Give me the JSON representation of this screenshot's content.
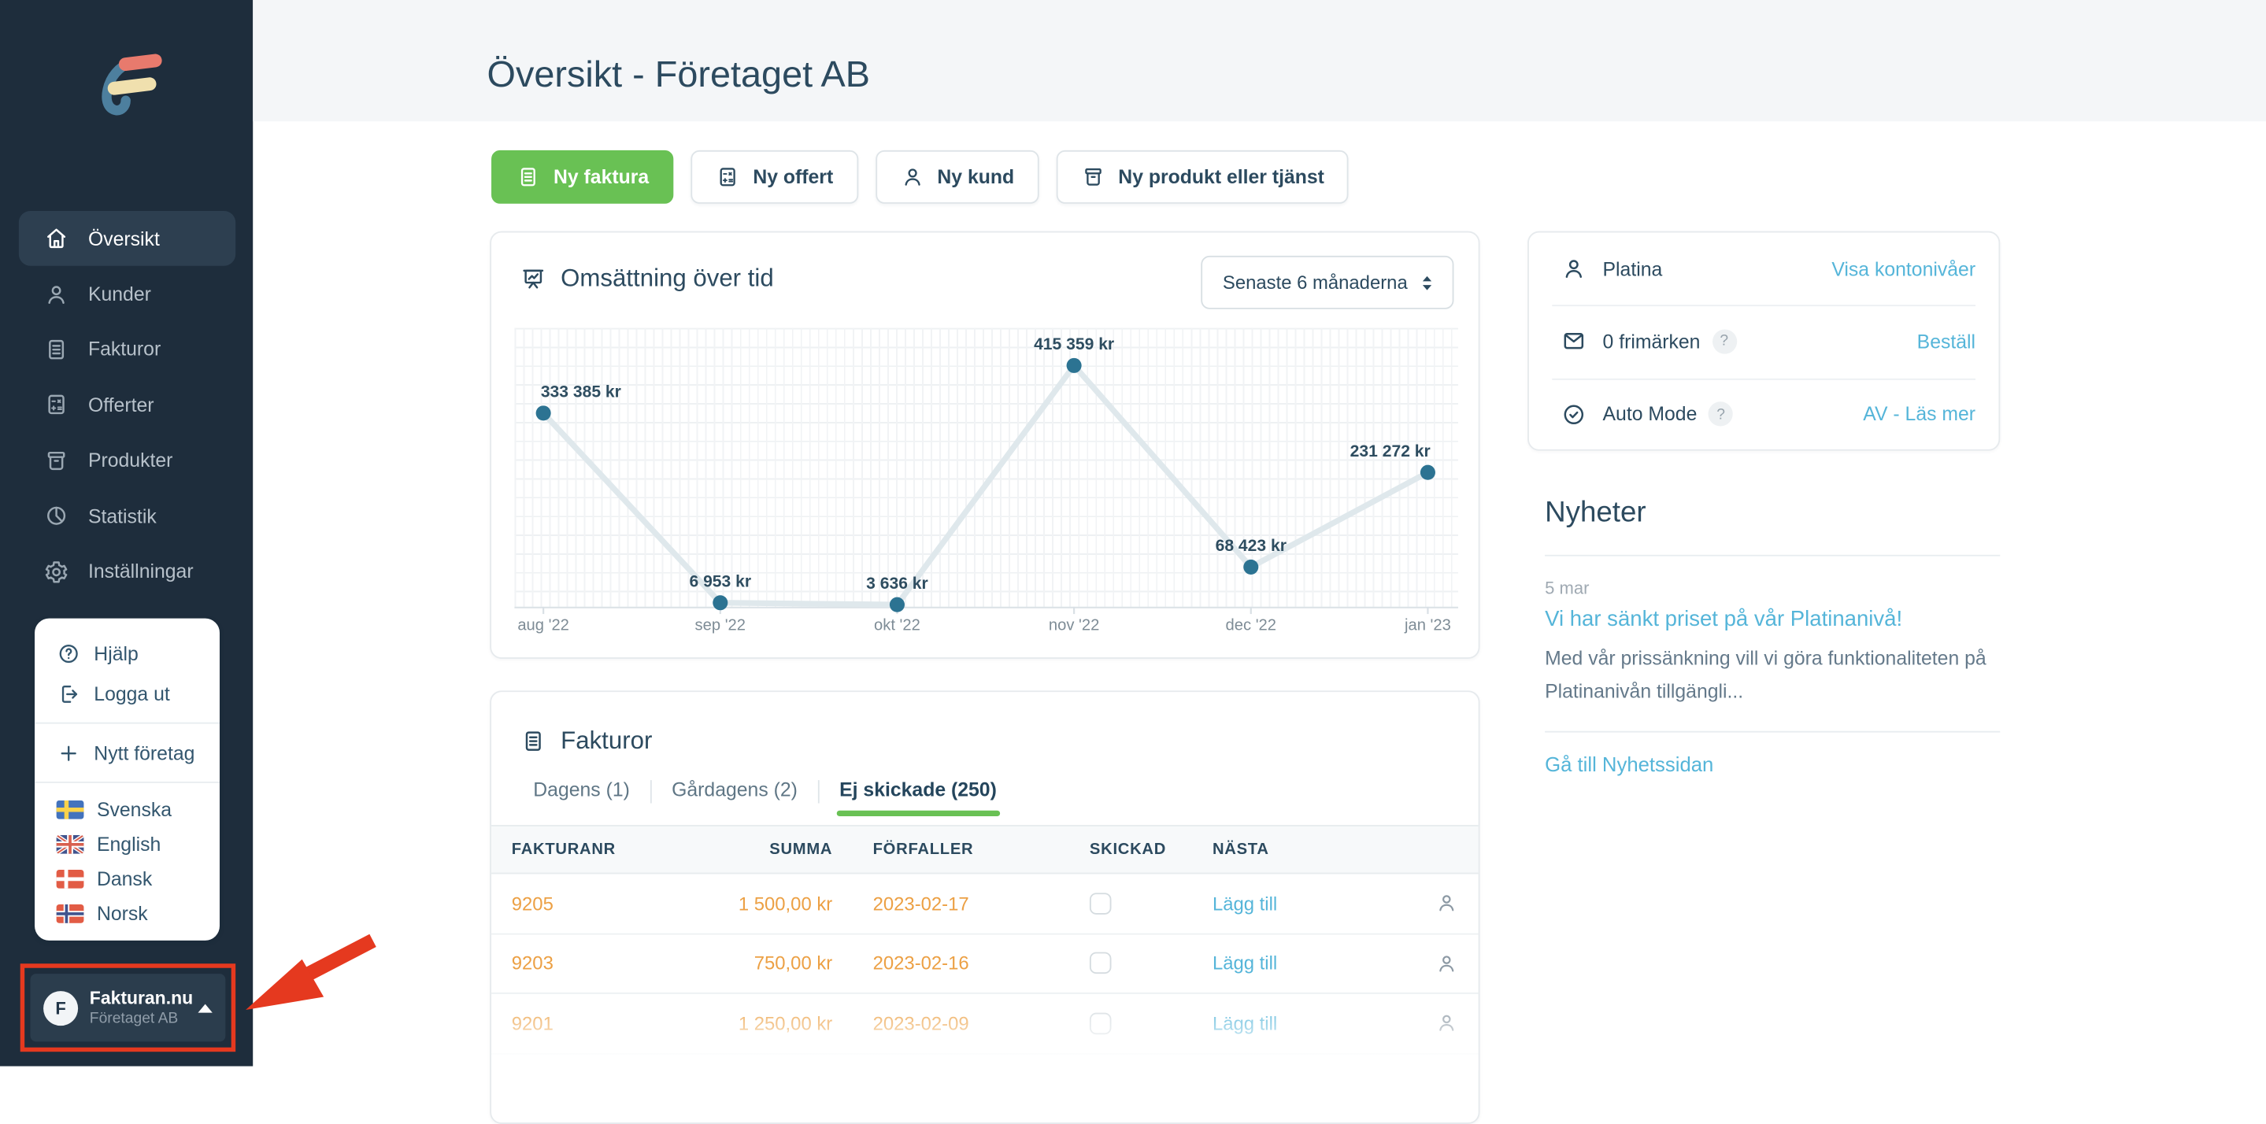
{
  "colors": {
    "sidebar_bg": "#1E2D3C",
    "accent_green": "#69C154",
    "link_blue": "#55B5D9",
    "value_orange": "#ECA044",
    "navy_text": "#2C4A5F",
    "annotation_red": "#E5391F",
    "chart_dot": "#2C7392",
    "chart_line": "#DFE8EC"
  },
  "sidebar": {
    "menu": [
      {
        "label": "Översikt",
        "icon": "home-icon",
        "active": true
      },
      {
        "label": "Kunder",
        "icon": "user-icon",
        "active": false
      },
      {
        "label": "Fakturor",
        "icon": "invoice-icon",
        "active": false
      },
      {
        "label": "Offerter",
        "icon": "calculator-icon",
        "active": false
      },
      {
        "label": "Produkter",
        "icon": "box-icon",
        "active": false
      },
      {
        "label": "Statistik",
        "icon": "pie-chart-icon",
        "active": false
      },
      {
        "label": "Inställningar",
        "icon": "gear-icon",
        "active": false
      }
    ],
    "help_menu": {
      "help": "Hjälp",
      "logout": "Logga ut",
      "new_company": "Nytt företag"
    },
    "languages": [
      {
        "label": "Svenska",
        "flag": "flag-sweden"
      },
      {
        "label": "English",
        "flag": "flag-uk"
      },
      {
        "label": "Dansk",
        "flag": "flag-denmark"
      },
      {
        "label": "Norsk",
        "flag": "flag-norway"
      }
    ],
    "switcher": {
      "avatar_letter": "F",
      "name": "Fakturan.nu",
      "company": "Företaget AB"
    }
  },
  "header": {
    "title": "Översikt - Företaget AB"
  },
  "actions": [
    {
      "label": "Ny faktura",
      "primary": true
    },
    {
      "label": "Ny offert",
      "primary": false
    },
    {
      "label": "Ny kund",
      "primary": false
    },
    {
      "label": "Ny produkt eller tjänst",
      "primary": false
    }
  ],
  "chart_card": {
    "title": "Omsättning över tid",
    "range_selected": "Senaste 6 månaderna"
  },
  "chart_data": {
    "type": "line",
    "title": "Omsättning över tid",
    "categories": [
      "aug '22",
      "sep '22",
      "okt '22",
      "nov '22",
      "dec '22",
      "jan '23"
    ],
    "values": [
      333385,
      6953,
      3636,
      415359,
      68423,
      231272
    ],
    "point_labels": [
      "333 385 kr",
      "6 953 kr",
      "3 636 kr",
      "415 359 kr",
      "68 423 kr",
      "231 272 kr"
    ],
    "label_offsets": [
      26,
      0,
      0,
      0,
      0,
      -26
    ],
    "unit": "kr",
    "ylim": [
      0,
      415359
    ],
    "grid": true,
    "legend": false
  },
  "account_card": {
    "rows": [
      {
        "label": "Platina",
        "link": "Visa kontonivåer",
        "help_badge": ""
      },
      {
        "label": "0 frimärken",
        "link": "Beställ",
        "help_badge": "?"
      },
      {
        "label": "Auto Mode",
        "link": "AV - Läs mer",
        "help_badge": "?"
      }
    ]
  },
  "news": {
    "title": "Nyheter",
    "items": [
      {
        "date": "5 mar",
        "headline": "Vi har sänkt priset på vår Platinanivå!",
        "excerpt": "Med vår prissänkning vill vi göra funktionaliteten på Platinanivån tillgängli..."
      }
    ],
    "footer_link": "Gå till Nyhetssidan"
  },
  "invoices": {
    "title": "Fakturor",
    "tabs": [
      {
        "label": "Dagens (1)",
        "active": false
      },
      {
        "label": "Gårdagens (2)",
        "active": false
      },
      {
        "label": "Ej skickade (250)",
        "active": true
      }
    ],
    "columns": [
      "FAKTURANR",
      "SUMMA",
      "FÖRFALLER",
      "SKICKAD",
      "NÄSTA"
    ],
    "rows": [
      {
        "nr": "9205",
        "sum": "1 500,00 kr",
        "due": "2023-02-17",
        "sent": false,
        "next": "Lägg till"
      },
      {
        "nr": "9203",
        "sum": "750,00 kr",
        "due": "2023-02-16",
        "sent": false,
        "next": "Lägg till"
      },
      {
        "nr": "9201",
        "sum": "1 250,00 kr",
        "due": "2023-02-09",
        "sent": false,
        "next": "Lägg till"
      }
    ]
  }
}
